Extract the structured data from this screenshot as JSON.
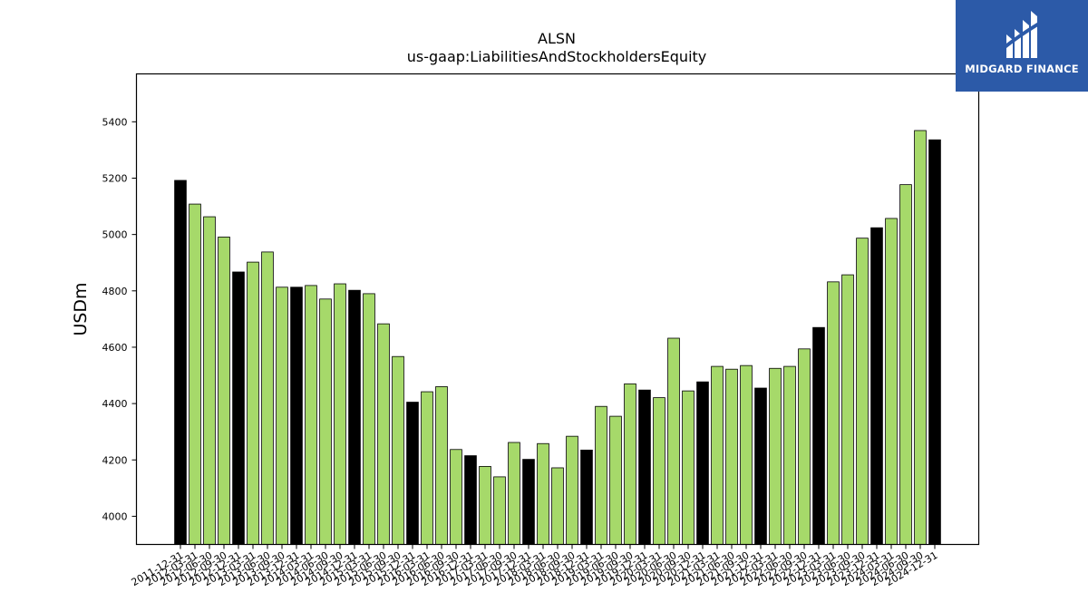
{
  "brand": {
    "name": "MIDGARD FINANCE",
    "bg_color": "#2c5aa8"
  },
  "chart_data": {
    "type": "bar",
    "title": "ALSN",
    "subtitle": "us-gaap:LiabilitiesAndStockholdersEquity",
    "ylabel": "USDm",
    "xlabel": "",
    "ylim": [
      3900,
      5570
    ],
    "yticks": [
      4000,
      4200,
      4400,
      4600,
      4800,
      5000,
      5200,
      5400
    ],
    "grid": false,
    "colors": {
      "annual": "#000000",
      "quarterly": "#a6d96a",
      "edge": "#000000"
    },
    "categories": [
      "2011-12-31",
      "2012-03-31",
      "2012-06-30",
      "2012-09-30",
      "2012-12-31",
      "2013-03-31",
      "2013-06-30",
      "2013-09-30",
      "2013-12-31",
      "2014-03-31",
      "2014-06-30",
      "2014-09-30",
      "2014-12-31",
      "2015-03-31",
      "2015-06-30",
      "2015-09-30",
      "2015-12-31",
      "2016-03-31",
      "2016-06-30",
      "2016-09-30",
      "2016-12-31",
      "2017-03-31",
      "2017-06-30",
      "2017-09-30",
      "2017-12-31",
      "2018-03-31",
      "2018-06-30",
      "2018-09-30",
      "2018-12-31",
      "2019-03-31",
      "2019-06-30",
      "2019-09-30",
      "2019-12-31",
      "2020-03-31",
      "2020-06-30",
      "2020-09-30",
      "2020-12-31",
      "2021-03-31",
      "2021-06-30",
      "2021-09-30",
      "2021-12-31",
      "2022-03-31",
      "2022-06-30",
      "2022-09-30",
      "2022-12-31",
      "2023-03-31",
      "2023-06-30",
      "2023-09-30",
      "2023-12-31",
      "2024-03-31",
      "2024-06-30",
      "2024-09-30",
      "2024-12-31"
    ],
    "values": [
      5192,
      5108,
      5063,
      4991,
      4867,
      4902,
      4938,
      4813,
      4813,
      4819,
      4771,
      4825,
      4802,
      4790,
      4683,
      4567,
      4405,
      4442,
      4460,
      4237,
      4215,
      4177,
      4140,
      4262,
      4202,
      4258,
      4172,
      4284,
      4235,
      4390,
      4355,
      4470,
      4448,
      4421,
      4632,
      4445,
      4477,
      4532,
      4522,
      4535,
      4455,
      4525,
      4532,
      4594,
      4670,
      4832,
      4857,
      4987,
      5024,
      5057,
      5177,
      5369,
      5336
    ],
    "annual_flags": [
      true,
      false,
      false,
      false,
      true,
      false,
      false,
      false,
      true,
      false,
      false,
      false,
      true,
      false,
      false,
      false,
      true,
      false,
      false,
      false,
      true,
      false,
      false,
      false,
      true,
      false,
      false,
      false,
      true,
      false,
      false,
      false,
      true,
      false,
      false,
      false,
      true,
      false,
      false,
      false,
      true,
      false,
      false,
      false,
      true,
      false,
      false,
      false,
      true,
      false,
      false,
      false,
      true
    ]
  }
}
